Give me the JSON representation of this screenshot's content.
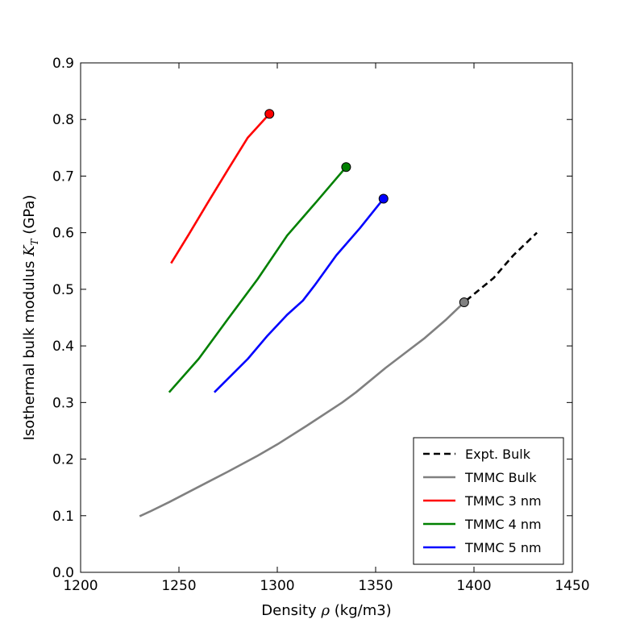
{
  "chart_data": {
    "type": "line",
    "title": "",
    "xlabel": "Density ρ (kg/m3)",
    "ylabel": "Isothermal bulk modulus K_T (GPa)",
    "xlim": [
      1200,
      1450
    ],
    "ylim": [
      0.0,
      0.9
    ],
    "xticks": [
      "1200",
      "1250",
      "1300",
      "1350",
      "1400",
      "1450"
    ],
    "yticks": [
      "0.0",
      "0.1",
      "0.2",
      "0.3",
      "0.4",
      "0.5",
      "0.6",
      "0.7",
      "0.8",
      "0.9"
    ],
    "grid": false,
    "legend_position": "lower-right",
    "series": [
      {
        "name": "Expt. Bulk",
        "color": "#000000",
        "dash": true,
        "marker_end": false,
        "points": [
          [
            1396,
            0.48
          ],
          [
            1410,
            0.52
          ],
          [
            1420,
            0.56
          ],
          [
            1432,
            0.6
          ]
        ]
      },
      {
        "name": "TMMC Bulk",
        "color": "#808080",
        "dash": false,
        "marker_end": true,
        "points": [
          [
            1230,
            0.099
          ],
          [
            1235,
            0.107
          ],
          [
            1245,
            0.124
          ],
          [
            1260,
            0.151
          ],
          [
            1275,
            0.178
          ],
          [
            1290,
            0.206
          ],
          [
            1300,
            0.226
          ],
          [
            1315,
            0.259
          ],
          [
            1333,
            0.3
          ],
          [
            1340,
            0.318
          ],
          [
            1355,
            0.361
          ],
          [
            1375,
            0.414
          ],
          [
            1386,
            0.447
          ],
          [
            1395,
            0.477
          ]
        ]
      },
      {
        "name": "TMMC 3 nm",
        "color": "#ff0000",
        "dash": false,
        "marker_end": true,
        "points": [
          [
            1246,
            0.546
          ],
          [
            1255,
            0.597
          ],
          [
            1265,
            0.655
          ],
          [
            1275,
            0.712
          ],
          [
            1285,
            0.768
          ],
          [
            1296,
            0.81
          ]
        ]
      },
      {
        "name": "TMMC 4 nm",
        "color": "#008000",
        "dash": false,
        "marker_end": true,
        "points": [
          [
            1245,
            0.318
          ],
          [
            1260,
            0.377
          ],
          [
            1275,
            0.448
          ],
          [
            1290,
            0.518
          ],
          [
            1305,
            0.595
          ],
          [
            1320,
            0.655
          ],
          [
            1335,
            0.716
          ]
        ]
      },
      {
        "name": "TMMC 5 nm",
        "color": "#0000ff",
        "dash": false,
        "marker_end": true,
        "points": [
          [
            1268,
            0.318
          ],
          [
            1285,
            0.377
          ],
          [
            1295,
            0.418
          ],
          [
            1305,
            0.455
          ],
          [
            1313,
            0.48
          ],
          [
            1319,
            0.507
          ],
          [
            1330,
            0.56
          ],
          [
            1342,
            0.608
          ],
          [
            1354,
            0.66
          ]
        ]
      }
    ]
  }
}
